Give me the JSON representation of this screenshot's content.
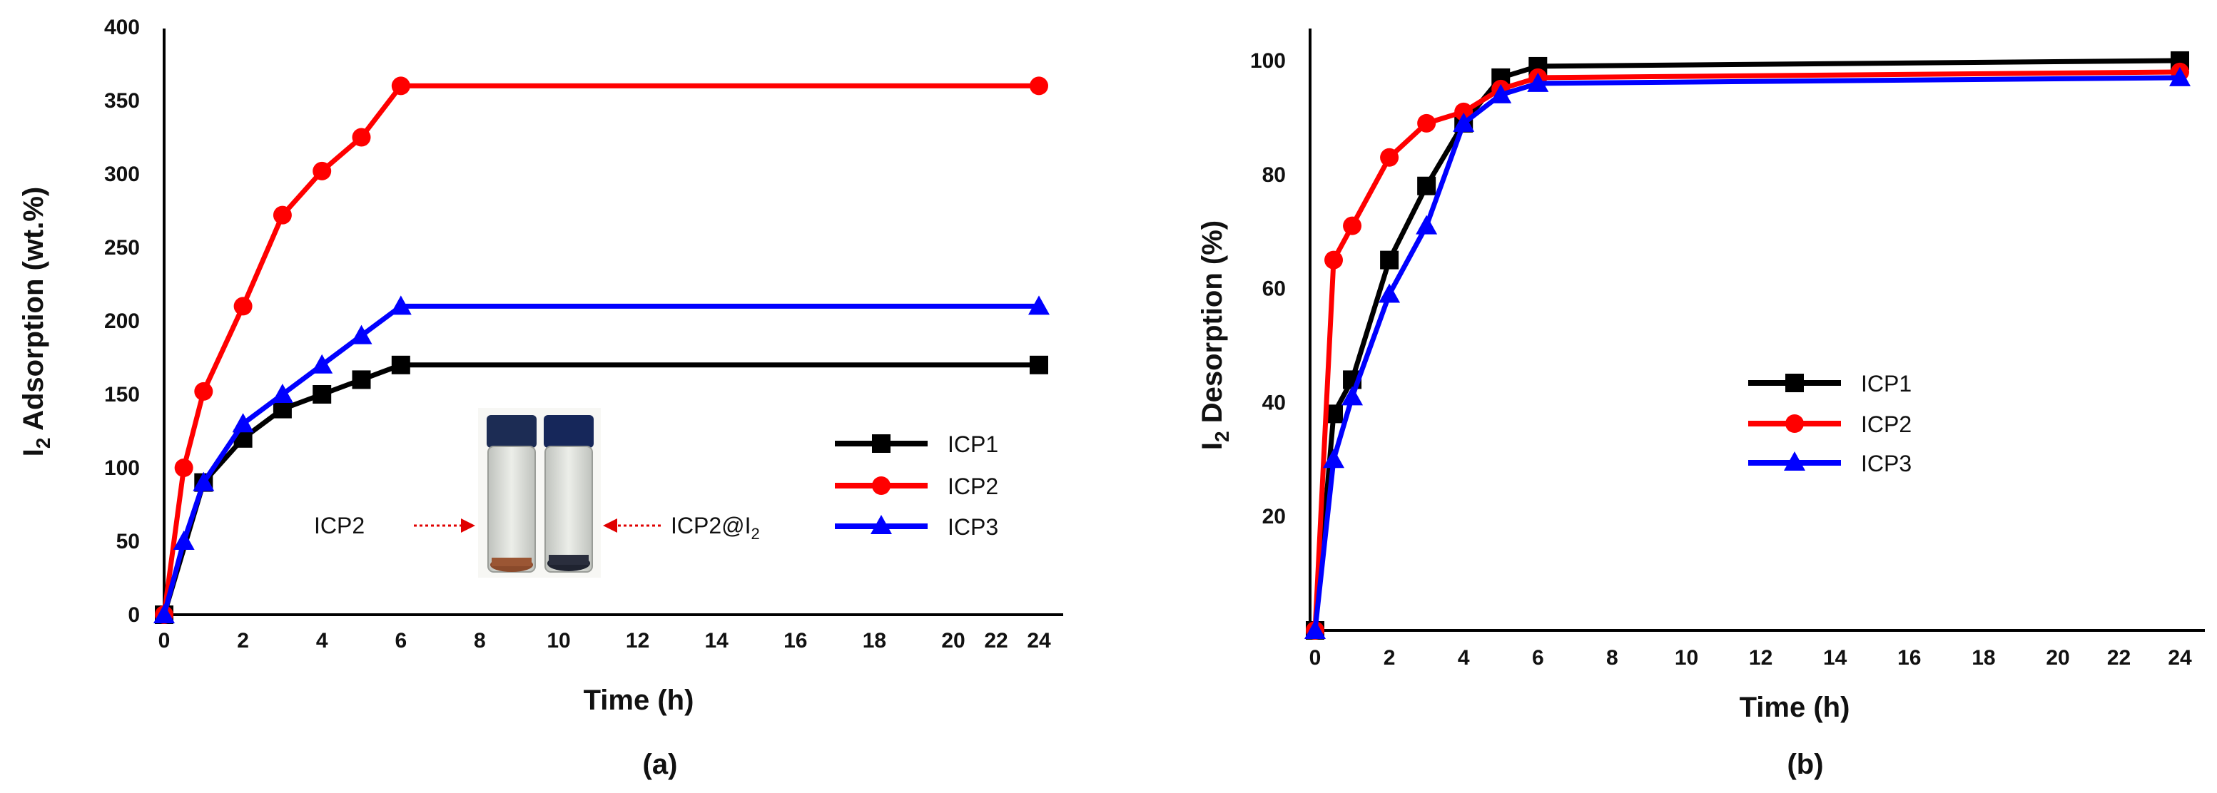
{
  "chart_data": [
    {
      "type": "line",
      "panel_label": "(a)",
      "xlabel": "Time (h)",
      "ylabel_main": "I",
      "ylabel_sub": "2",
      "ylabel_rest": " Adsorption (wt.%)",
      "x_tick_labels": [
        "0",
        "2",
        "4",
        "6",
        "8",
        "10",
        "12",
        "14",
        "16",
        "18",
        "20",
        "22",
        "24"
      ],
      "y_tick_labels": [
        "0",
        "50",
        "100",
        "150",
        "200",
        "250",
        "300",
        "350",
        "400"
      ],
      "y_ticks": [
        0,
        50,
        100,
        150,
        200,
        250,
        300,
        350,
        400
      ],
      "ylim": [
        0,
        400
      ],
      "legend_position": "center-right",
      "series": [
        {
          "name": "ICP1",
          "color": "#000000",
          "marker": "square",
          "x": [
            0,
            1,
            2,
            3,
            4,
            5,
            6,
            24
          ],
          "y": [
            0,
            90,
            120,
            140,
            150,
            160,
            170,
            170
          ]
        },
        {
          "name": "ICP2",
          "color": "#ff0000",
          "marker": "circle",
          "x": [
            0,
            0.5,
            1,
            2,
            3,
            4,
            5,
            6,
            24
          ],
          "y": [
            0,
            100,
            152,
            210,
            272,
            302,
            325,
            360,
            360
          ]
        },
        {
          "name": "ICP3",
          "color": "#0000ff",
          "marker": "triangle",
          "x": [
            0,
            0.5,
            1,
            2,
            3,
            4,
            5,
            6,
            24
          ],
          "y": [
            0,
            50,
            90,
            130,
            150,
            170,
            190,
            210,
            210
          ]
        }
      ],
      "inset": {
        "left_label": "ICP2",
        "right_label_main": "ICP2@I",
        "right_label_sub": "2"
      }
    },
    {
      "type": "line",
      "panel_label": "(b)",
      "xlabel": "Time (h)",
      "ylabel_main": "I",
      "ylabel_sub": "2",
      "ylabel_rest": " Desorption (%)",
      "x_tick_labels": [
        "0",
        "2",
        "4",
        "6",
        "8",
        "10",
        "12",
        "14",
        "16",
        "18",
        "20",
        "22",
        "24"
      ],
      "y_tick_labels": [
        "20",
        "40",
        "60",
        "80",
        "100"
      ],
      "y_ticks": [
        20,
        40,
        60,
        80,
        100
      ],
      "ylim": [
        0,
        105
      ],
      "legend_position": "center-right",
      "series": [
        {
          "name": "ICP1",
          "color": "#000000",
          "marker": "square",
          "x": [
            0,
            0.5,
            1,
            2,
            3,
            4,
            5,
            6,
            24
          ],
          "y": [
            0,
            38,
            44,
            65,
            78,
            89,
            97,
            99,
            100
          ]
        },
        {
          "name": "ICP2",
          "color": "#ff0000",
          "marker": "circle",
          "x": [
            0,
            0.5,
            1,
            2,
            3,
            4,
            5,
            6,
            24
          ],
          "y": [
            0,
            65,
            71,
            83,
            89,
            91,
            95,
            97,
            98
          ]
        },
        {
          "name": "ICP3",
          "color": "#0000ff",
          "marker": "triangle",
          "x": [
            0,
            0.5,
            1,
            2,
            3,
            4,
            5,
            6,
            24
          ],
          "y": [
            0,
            30,
            41,
            59,
            71,
            89,
            94,
            96,
            97
          ]
        }
      ]
    }
  ]
}
